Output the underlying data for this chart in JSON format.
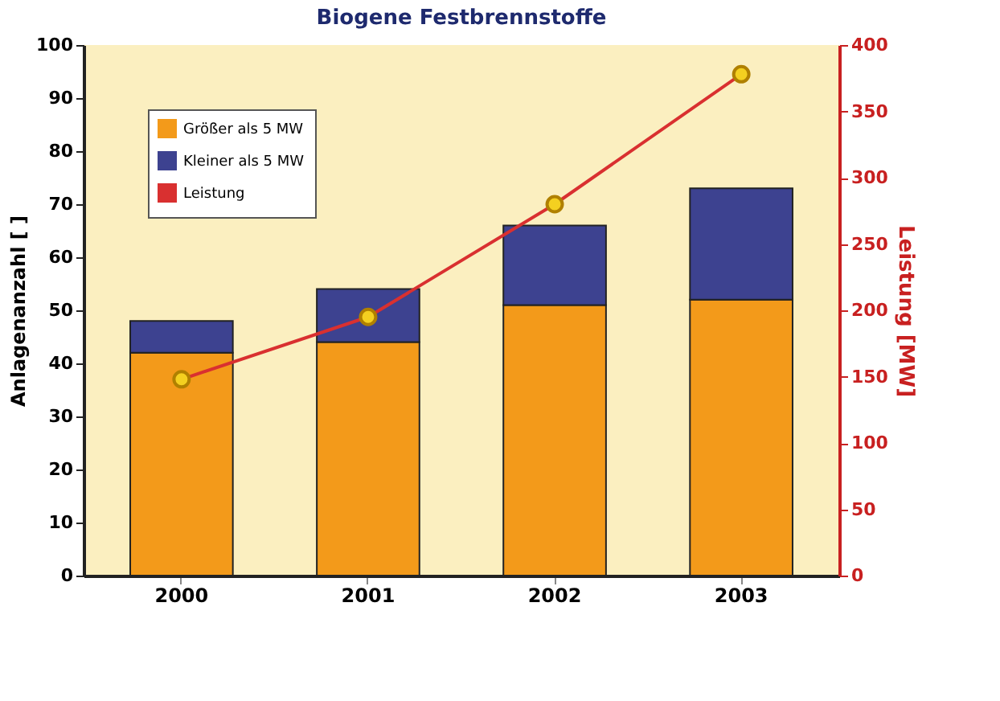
{
  "chart_data": {
    "type": "bar",
    "title": "Biogene Festbrennstoffe",
    "ylabel": "Anlagenanzahl [ ]",
    "y2label": "Leistung [MW]",
    "categories": [
      "2000",
      "2001",
      "2002",
      "2003"
    ],
    "stacked": true,
    "series": [
      {
        "name": "Größer als 5 MW",
        "color": "#f39a1a",
        "values": [
          42,
          44,
          51,
          52
        ]
      },
      {
        "name": "Kleiner als 5 MW",
        "color": "#3d4290",
        "values": [
          6,
          10,
          15,
          21
        ]
      },
      {
        "name": "Leistung",
        "type": "line",
        "axis": "y2",
        "color": "#d93030",
        "marker": "circle",
        "values": [
          148,
          195,
          280,
          378
        ]
      }
    ],
    "ylim": [
      0,
      100
    ],
    "yticks": [
      0,
      10,
      20,
      30,
      40,
      50,
      60,
      70,
      80,
      90,
      100
    ],
    "y2lim": [
      0,
      400
    ],
    "y2ticks": [
      0,
      50,
      100,
      150,
      200,
      250,
      300,
      350,
      400
    ],
    "grid": false,
    "legend": "top left"
  }
}
